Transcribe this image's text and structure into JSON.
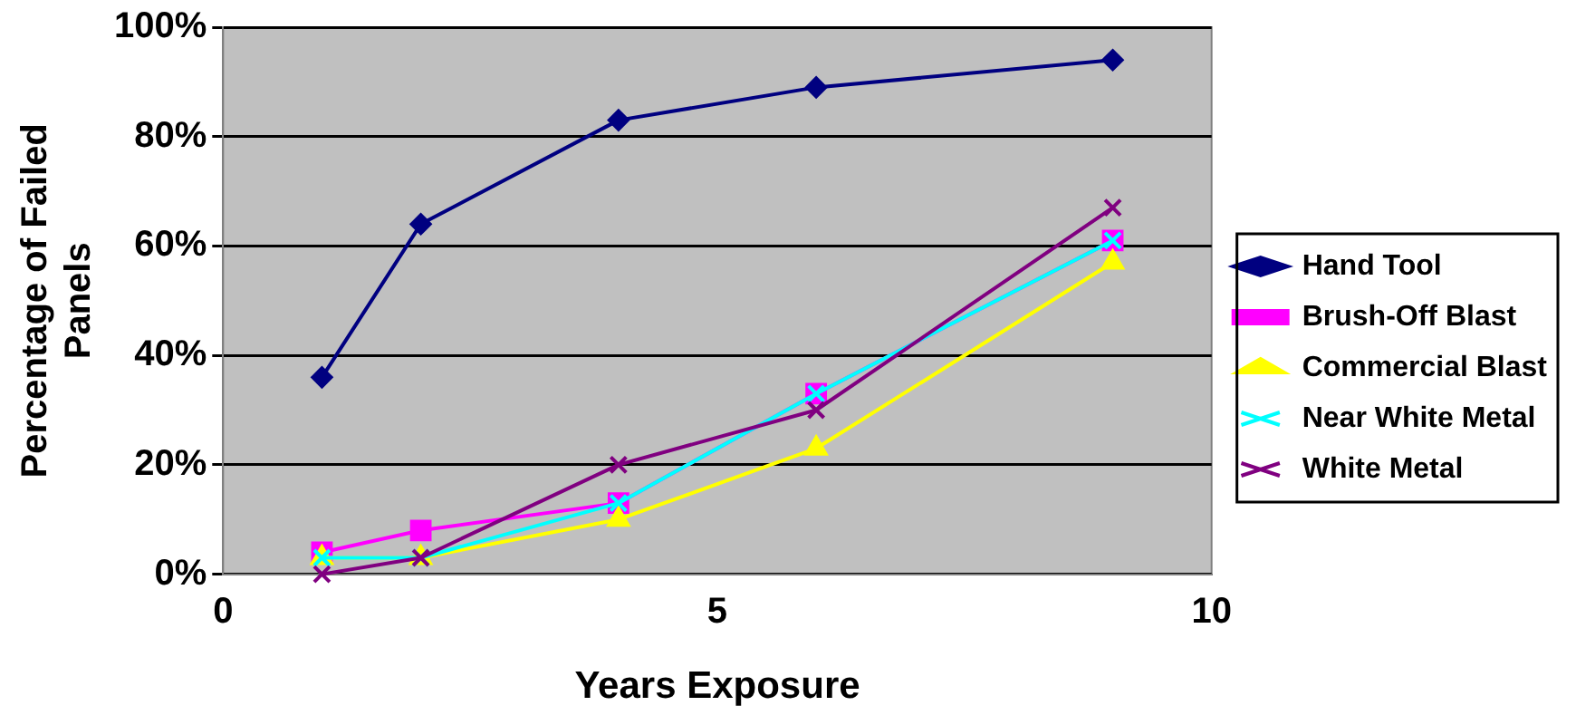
{
  "chart_data": {
    "type": "line",
    "xlabel": "Years Exposure",
    "ylabel": "Percentage of Failed Panels",
    "x": [
      1,
      2,
      4,
      6,
      9
    ],
    "xlim": [
      0,
      10
    ],
    "xticks": [
      0,
      5,
      10
    ],
    "ylim": [
      0,
      100
    ],
    "yticks": [
      {
        "value": 0,
        "label": "0%"
      },
      {
        "value": 20,
        "label": "20%"
      },
      {
        "value": 40,
        "label": "40%"
      },
      {
        "value": 60,
        "label": "60%"
      },
      {
        "value": 80,
        "label": "80%"
      },
      {
        "value": 100,
        "label": "100%"
      }
    ],
    "grid": "y",
    "legend": "right",
    "line_style": "solid",
    "series": [
      {
        "name": "Hand Tool",
        "color": "#000080",
        "marker": "diamond",
        "values": [
          36,
          64,
          83,
          89,
          94
        ]
      },
      {
        "name": "Brush-Off Blast",
        "color": "#ff00ff",
        "marker": "square",
        "values": [
          4,
          8,
          13,
          33,
          61
        ]
      },
      {
        "name": "Commercial Blast",
        "color": "#ffff00",
        "marker": "triangle",
        "values": [
          3,
          3,
          10,
          23,
          57
        ]
      },
      {
        "name": "Near White Metal",
        "color": "#00ffff",
        "marker": "cross",
        "values": [
          3,
          3,
          13,
          33,
          61
        ]
      },
      {
        "name": "White Metal",
        "color": "#800080",
        "marker": "cross",
        "values": [
          0,
          3,
          20,
          30,
          67
        ]
      }
    ]
  }
}
